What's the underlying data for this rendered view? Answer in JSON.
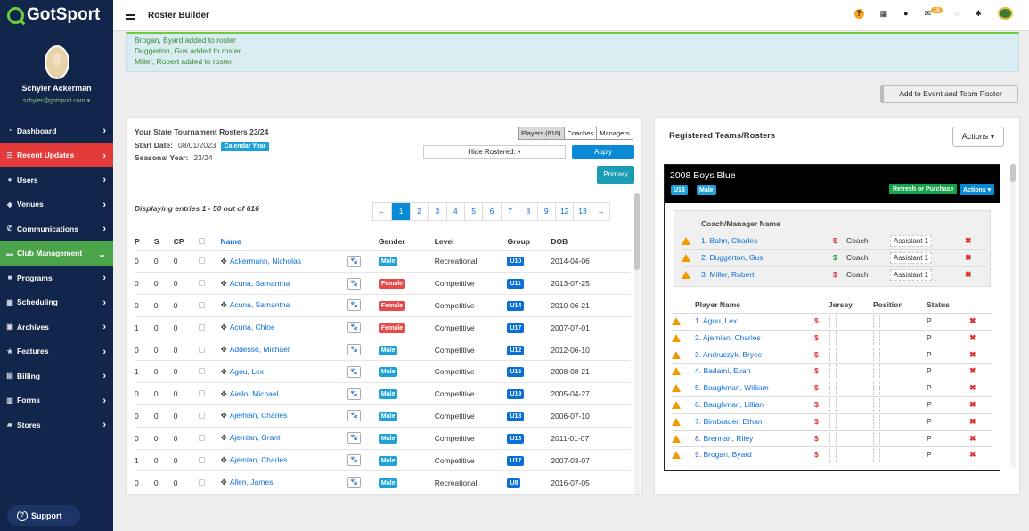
{
  "app": {
    "logo": "GotSport",
    "page_title": "Roster Builder",
    "notif_count": "10"
  },
  "user": {
    "name": "Schyler Ackerman",
    "email": "schyler@gotsport.com ▾"
  },
  "nav": [
    {
      "label": "Dashboard",
      "icon": "dashboard-icon",
      "state": ""
    },
    {
      "label": "Recent Updates",
      "icon": "updates-icon",
      "state": "red"
    },
    {
      "label": "Users",
      "icon": "users-icon",
      "state": ""
    },
    {
      "label": "Venues",
      "icon": "venues-icon",
      "state": ""
    },
    {
      "label": "Communications",
      "icon": "communications-icon",
      "state": ""
    },
    {
      "label": "Club Management",
      "icon": "club-icon",
      "state": "green"
    },
    {
      "label": "Programs",
      "icon": "programs-icon",
      "state": ""
    },
    {
      "label": "Scheduling",
      "icon": "scheduling-icon",
      "state": ""
    },
    {
      "label": "Archives",
      "icon": "archives-icon",
      "state": ""
    },
    {
      "label": "Features",
      "icon": "features-icon",
      "state": ""
    },
    {
      "label": "Billing",
      "icon": "billing-icon",
      "state": ""
    },
    {
      "label": "Forms",
      "icon": "forms-icon",
      "state": ""
    },
    {
      "label": "Stores",
      "icon": "stores-icon",
      "state": ""
    }
  ],
  "support": "Support",
  "alerts": [
    "Brogan, Byard added to roster",
    "Duggerton, Gus added to roster",
    "Miller, Robert added to roster"
  ],
  "add_button": "Add to Event and Team Roster",
  "left": {
    "title": "Your State Tournament Rosters 23/24",
    "start_label": "Start Date:",
    "start_value": "08/01/2023",
    "calendar_chip": "Calendar Year",
    "season_label": "Seasonal Year:",
    "season_value": "23/24",
    "tabs": [
      "Players (616)",
      "Coaches",
      "Managers"
    ],
    "filter": "Hide Rostered: ▾",
    "apply": "Apply",
    "primary": "Primary",
    "entries": "Displaying entries 1 - 50 out of 616",
    "pages": [
      "←",
      "1",
      "2",
      "3",
      "4",
      "5",
      "6",
      "7",
      "8",
      "9",
      "12",
      "13",
      "→"
    ],
    "columns": [
      "P",
      "S",
      "CP",
      "",
      "Name",
      "",
      "Gender",
      "Level",
      "Group",
      "DOB"
    ],
    "rows": [
      {
        "p": "0",
        "s": "0",
        "cp": "0",
        "name": "Ackermann, Nicholas",
        "gender": "Male",
        "level": "Recreational",
        "group": "U10",
        "dob": "2014-04-06"
      },
      {
        "p": "0",
        "s": "0",
        "cp": "0",
        "name": "Acuna, Samantha",
        "gender": "Female",
        "level": "Competitive",
        "group": "U11",
        "dob": "2013-07-25"
      },
      {
        "p": "0",
        "s": "0",
        "cp": "0",
        "name": "Acuna, Samantha",
        "gender": "Female",
        "level": "Competitive",
        "group": "U14",
        "dob": "2010-06-21"
      },
      {
        "p": "1",
        "s": "0",
        "cp": "0",
        "name": "Acuna, Chloe",
        "gender": "Female",
        "level": "Competitive",
        "group": "U17",
        "dob": "2007-07-01"
      },
      {
        "p": "0",
        "s": "0",
        "cp": "0",
        "name": "Addesso, Michael",
        "gender": "Male",
        "level": "Competitive",
        "group": "U12",
        "dob": "2012-06-10"
      },
      {
        "p": "1",
        "s": "0",
        "cp": "0",
        "name": "Agou, Lex",
        "gender": "Male",
        "level": "Competitive",
        "group": "U16",
        "dob": "2008-08-21"
      },
      {
        "p": "0",
        "s": "0",
        "cp": "0",
        "name": "Aiello, Michael",
        "gender": "Male",
        "level": "Competitive",
        "group": "U19",
        "dob": "2005-04-27"
      },
      {
        "p": "0",
        "s": "0",
        "cp": "0",
        "name": "Ajemian, Charles",
        "gender": "Male",
        "level": "Competitive",
        "group": "U18",
        "dob": "2006-07-10"
      },
      {
        "p": "0",
        "s": "0",
        "cp": "0",
        "name": "Ajemian, Grant",
        "gender": "Male",
        "level": "Competitive",
        "group": "U13",
        "dob": "2011-01-07"
      },
      {
        "p": "1",
        "s": "0",
        "cp": "0",
        "name": "Ajemian, Charles",
        "gender": "Male",
        "level": "Competitive",
        "group": "U17",
        "dob": "2007-03-07"
      },
      {
        "p": "0",
        "s": "0",
        "cp": "0",
        "name": "Allen, James",
        "gender": "Male",
        "level": "Recreational",
        "group": "U8",
        "dob": "2016-07-05"
      }
    ]
  },
  "right": {
    "title": "Registered Teams/Rosters",
    "actions": "Actions ▾",
    "team": {
      "name": "2008 Boys Blue",
      "age": "U16",
      "gender": "Male",
      "refresh": "Refresh or Purchase",
      "actions": "Actions ▾"
    },
    "coach_header": "Coach/Manager Name",
    "coaches": [
      {
        "name": "1. Bahn, Charles",
        "paid": "red",
        "role": "Coach",
        "title": "Assistant 1"
      },
      {
        "name": "2. Duggerton, Gus",
        "paid": "green",
        "role": "Coach",
        "title": "Assistant 1"
      },
      {
        "name": "3. Miller, Robert",
        "paid": "red",
        "role": "Coach",
        "title": "Assistant 1"
      }
    ],
    "player_cols": [
      "Player Name",
      "Jersey",
      "Position",
      "Status"
    ],
    "players": [
      {
        "name": "1. Agou, Lex",
        "status": "P"
      },
      {
        "name": "2. Ajemian, Charles",
        "status": "P"
      },
      {
        "name": "3. Andruczyk, Bryce",
        "status": "P"
      },
      {
        "name": "4. Badami, Evan",
        "status": "P"
      },
      {
        "name": "5. Baughman, William",
        "status": "P"
      },
      {
        "name": "6. Baughman, Lillian",
        "status": "P"
      },
      {
        "name": "7. Birnbrauer, Ethan",
        "status": "P"
      },
      {
        "name": "8. Brennan, Riley",
        "status": "P"
      },
      {
        "name": "9. Brogan, Byard",
        "status": "P"
      }
    ]
  }
}
